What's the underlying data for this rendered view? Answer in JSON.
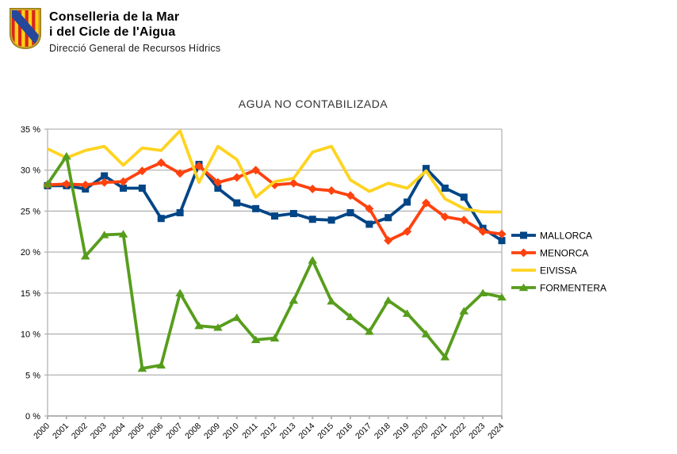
{
  "header": {
    "org_line1": "Conselleria de la Mar",
    "org_line2": "i del Cicle de l'Aigua",
    "department": "Direcció General de Recursos Hídrics",
    "logo": "govern-illes-balears-shield",
    "logo_colors": {
      "red": "#DA251D",
      "yellow": "#FCD116",
      "blue": "#26489C",
      "gold_border": "#C9A227"
    }
  },
  "chart_data": {
    "type": "line",
    "title": "AGUA NO CONTABILIZADA",
    "title_color": "#333333",
    "axis_color": "#b3b3b3",
    "text_color": "#000000",
    "grid": true,
    "legend_position": "right",
    "x_label_rotation_deg": -45,
    "y_axis": {
      "min": 0,
      "max": 35,
      "step": 5,
      "tick_suffix": " %"
    },
    "categories": [
      "2000",
      "2001",
      "2002",
      "2003",
      "2004",
      "2005",
      "2006",
      "2007",
      "2008",
      "2009",
      "2010",
      "2011",
      "2012",
      "2013",
      "2014",
      "2015",
      "2016",
      "2017",
      "2018",
      "2019",
      "2020",
      "2021",
      "2022",
      "2023",
      "2024"
    ],
    "series": [
      {
        "name": "MALLORCA",
        "color": "#004586",
        "marker": "square",
        "values": [
          28.1,
          28.1,
          27.7,
          29.3,
          27.8,
          27.8,
          24.1,
          24.8,
          30.7,
          27.8,
          26.0,
          25.3,
          24.4,
          24.7,
          24.0,
          23.9,
          24.8,
          23.4,
          24.2,
          26.1,
          30.2,
          27.8,
          26.7,
          22.9,
          21.4
        ]
      },
      {
        "name": "MENORCA",
        "color": "#FF420E",
        "marker": "diamond",
        "values": [
          28.2,
          28.3,
          28.2,
          28.5,
          28.6,
          29.9,
          30.9,
          29.6,
          30.5,
          28.5,
          29.1,
          30.0,
          28.2,
          28.4,
          27.7,
          27.5,
          26.9,
          25.3,
          21.4,
          22.5,
          26.0,
          24.3,
          23.9,
          22.5,
          22.2
        ]
      },
      {
        "name": "EIVISSA",
        "color": "#FFD320",
        "marker": "none",
        "values": [
          32.6,
          31.5,
          32.4,
          32.9,
          30.6,
          32.7,
          32.4,
          34.8,
          28.5,
          32.9,
          31.3,
          26.7,
          28.6,
          29.0,
          32.2,
          32.9,
          28.8,
          27.4,
          28.4,
          27.8,
          29.9,
          26.5,
          25.3,
          24.9,
          24.9
        ]
      },
      {
        "name": "FORMENTERA",
        "color": "#579D1C",
        "marker": "triangle",
        "values": [
          28.3,
          31.7,
          19.5,
          22.1,
          22.2,
          5.8,
          6.2,
          15.0,
          11.0,
          10.8,
          12.0,
          9.3,
          9.5,
          14.1,
          19.0,
          14.0,
          12.1,
          10.3,
          14.1,
          12.5,
          10.0,
          7.2,
          12.8,
          15.0,
          14.5
        ]
      }
    ]
  }
}
